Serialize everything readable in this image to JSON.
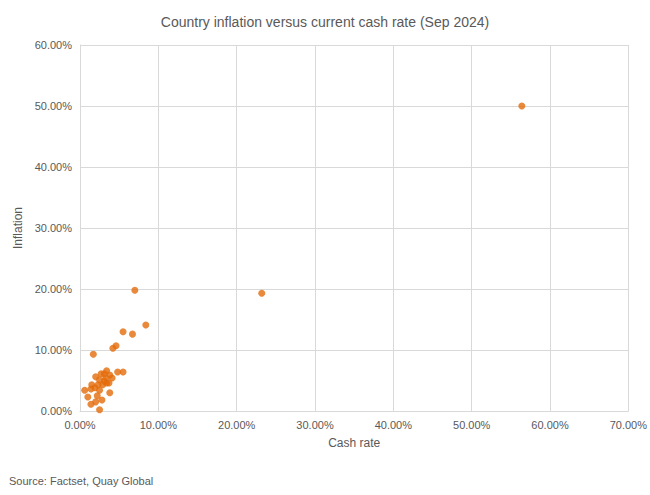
{
  "chart_data": {
    "type": "scatter",
    "title": "Country inflation versus current cash rate (Sep 2024)",
    "x_label": "Cash rate",
    "y_label": "Inflation",
    "source": "Source: Factset, Quay Global",
    "color": "#e46c0a",
    "marker": "circle",
    "grid": true,
    "xlim": [
      0,
      70
    ],
    "ylim": [
      0,
      60
    ],
    "xticks": [
      {
        "value": 0,
        "label": "0.00%"
      },
      {
        "value": 10,
        "label": "10.00%"
      },
      {
        "value": 20,
        "label": "20.00%"
      },
      {
        "value": 30,
        "label": "30.00%"
      },
      {
        "value": 40,
        "label": "40.00%"
      },
      {
        "value": 50,
        "label": "50.00%"
      },
      {
        "value": 60,
        "label": "60.00%"
      },
      {
        "value": 70,
        "label": "70.00%"
      }
    ],
    "yticks": [
      {
        "value": 0,
        "label": "0.00%"
      },
      {
        "value": 10,
        "label": "10.00%"
      },
      {
        "value": 20,
        "label": "20.00%"
      },
      {
        "value": 30,
        "label": "30.00%"
      },
      {
        "value": 40,
        "label": "40.00%"
      },
      {
        "value": 50,
        "label": "50.00%"
      },
      {
        "value": 60,
        "label": "60.00%"
      }
    ],
    "x": [
      56.4,
      23.2,
      7.0,
      8.4,
      6.7,
      5.5,
      4.6,
      4.2,
      1.7,
      5.5,
      4.8,
      3.8,
      3.4,
      3.1,
      2.7,
      2.0,
      2.5,
      3.1,
      3.4,
      2.9,
      3.7,
      2.3,
      1.5,
      1.9,
      1.4,
      0.6,
      2.5,
      3.8,
      2.2,
      1.0,
      2.8,
      1.4,
      2.0,
      2.5,
      4.1,
      3.3
    ],
    "values": [
      50.0,
      19.3,
      19.8,
      14.1,
      12.6,
      13.0,
      10.7,
      10.3,
      9.3,
      6.4,
      6.4,
      5.9,
      6.6,
      6.1,
      6.1,
      5.6,
      5.1,
      4.9,
      4.6,
      4.3,
      4.6,
      4.3,
      4.3,
      3.8,
      3.6,
      3.4,
      3.4,
      3.0,
      2.5,
      2.3,
      1.8,
      1.1,
      1.5,
      0.2,
      5.4,
      5.4
    ]
  }
}
